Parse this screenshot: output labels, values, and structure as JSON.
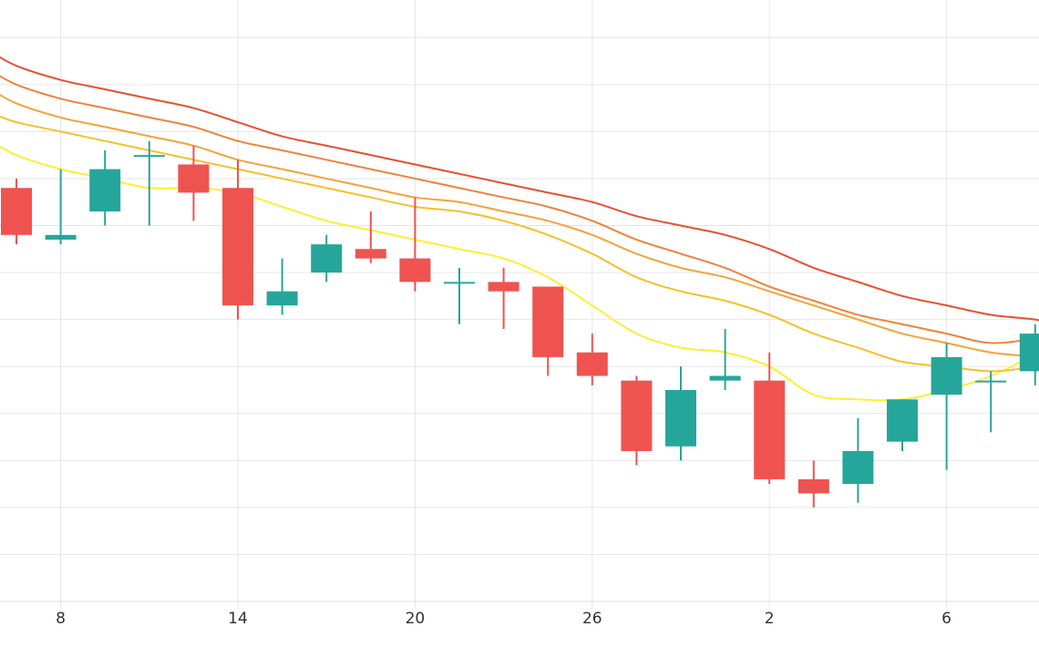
{
  "chart_data": {
    "type": "candlestick",
    "title": "",
    "xlabel": "",
    "ylabel": "",
    "x_tick_labels": [
      {
        "label": "8",
        "index": 1
      },
      {
        "label": "14",
        "index": 5
      },
      {
        "label": "20",
        "index": 9
      },
      {
        "label": "26",
        "index": 13
      },
      {
        "label": "2",
        "index": 17
      },
      {
        "label": "6",
        "index": 21
      }
    ],
    "candles": [
      {
        "index": 0,
        "open": 8.8,
        "high": 9.0,
        "low": 7.6,
        "close": 7.8
      },
      {
        "index": 1,
        "open": 7.7,
        "high": 9.2,
        "low": 7.6,
        "close": 7.8
      },
      {
        "index": 2,
        "open": 8.3,
        "high": 9.6,
        "low": 8.0,
        "close": 9.2
      },
      {
        "index": 3,
        "open": 9.5,
        "high": 9.8,
        "low": 8.0,
        "close": 9.5
      },
      {
        "index": 4,
        "open": 9.3,
        "high": 9.7,
        "low": 8.1,
        "close": 8.7
      },
      {
        "index": 5,
        "open": 8.8,
        "high": 9.4,
        "low": 6.0,
        "close": 6.3
      },
      {
        "index": 6,
        "open": 6.3,
        "high": 7.3,
        "low": 6.1,
        "close": 6.6
      },
      {
        "index": 7,
        "open": 7.0,
        "high": 7.8,
        "low": 6.8,
        "close": 7.6
      },
      {
        "index": 8,
        "open": 7.5,
        "high": 8.3,
        "low": 7.2,
        "close": 7.3
      },
      {
        "index": 9,
        "open": 7.3,
        "high": 8.6,
        "low": 6.6,
        "close": 6.8
      },
      {
        "index": 10,
        "open": 6.8,
        "high": 7.1,
        "low": 5.9,
        "close": 6.8
      },
      {
        "index": 11,
        "open": 6.8,
        "high": 7.1,
        "low": 5.8,
        "close": 6.6
      },
      {
        "index": 12,
        "open": 6.7,
        "high": 6.7,
        "low": 4.8,
        "close": 5.2
      },
      {
        "index": 13,
        "open": 5.3,
        "high": 5.7,
        "low": 4.6,
        "close": 4.8
      },
      {
        "index": 14,
        "open": 4.7,
        "high": 4.8,
        "low": 2.9,
        "close": 3.2
      },
      {
        "index": 15,
        "open": 3.3,
        "high": 5.0,
        "low": 3.0,
        "close": 4.5
      },
      {
        "index": 16,
        "open": 4.7,
        "high": 5.8,
        "low": 4.5,
        "close": 4.8
      },
      {
        "index": 17,
        "open": 4.7,
        "high": 5.3,
        "low": 2.5,
        "close": 2.6
      },
      {
        "index": 18,
        "open": 2.6,
        "high": 3.0,
        "low": 2.0,
        "close": 2.3
      },
      {
        "index": 19,
        "open": 2.5,
        "high": 3.9,
        "low": 2.1,
        "close": 3.2
      },
      {
        "index": 20,
        "open": 3.4,
        "high": 4.3,
        "low": 3.2,
        "close": 4.3
      },
      {
        "index": 21,
        "open": 4.4,
        "high": 5.5,
        "low": 2.8,
        "close": 5.2
      },
      {
        "index": 22,
        "open": 4.7,
        "high": 4.9,
        "low": 3.6,
        "close": 4.7
      },
      {
        "index": 23,
        "open": 4.9,
        "high": 5.9,
        "low": 4.6,
        "close": 5.7
      }
    ],
    "moving_averages": [
      {
        "color": "#ffee33",
        "values": [
          9.5,
          9.2,
          9.0,
          8.8,
          8.8,
          8.7,
          8.4,
          8.1,
          7.9,
          7.7,
          7.5,
          7.3,
          6.9,
          6.3,
          5.7,
          5.4,
          5.3,
          5.0,
          4.4,
          4.3,
          4.3,
          4.5,
          4.8,
          5.3
        ]
      },
      {
        "color": "#f6c02c",
        "values": [
          10.2,
          10.0,
          9.8,
          9.6,
          9.4,
          9.2,
          9.0,
          8.8,
          8.6,
          8.4,
          8.3,
          8.1,
          7.8,
          7.4,
          6.9,
          6.6,
          6.4,
          6.1,
          5.7,
          5.4,
          5.1,
          5.0,
          4.9,
          5.0
        ]
      },
      {
        "color": "#f5a23a",
        "values": [
          10.6,
          10.3,
          10.1,
          9.9,
          9.7,
          9.4,
          9.2,
          9.0,
          8.8,
          8.6,
          8.5,
          8.3,
          8.1,
          7.8,
          7.4,
          7.1,
          6.9,
          6.6,
          6.3,
          6.0,
          5.7,
          5.5,
          5.3,
          5.2
        ]
      },
      {
        "color": "#f0823a",
        "values": [
          11.0,
          10.7,
          10.5,
          10.3,
          10.1,
          9.8,
          9.6,
          9.4,
          9.2,
          9.0,
          8.8,
          8.6,
          8.4,
          8.1,
          7.7,
          7.4,
          7.1,
          6.7,
          6.4,
          6.1,
          5.9,
          5.7,
          5.5,
          5.6
        ]
      },
      {
        "color": "#e8502f",
        "values": [
          11.4,
          11.1,
          10.9,
          10.7,
          10.5,
          10.2,
          9.9,
          9.7,
          9.5,
          9.3,
          9.1,
          8.9,
          8.7,
          8.5,
          8.2,
          8.0,
          7.8,
          7.5,
          7.1,
          6.8,
          6.5,
          6.3,
          6.1,
          6.0
        ]
      }
    ],
    "colors": {
      "up": "#26a69a",
      "down": "#ef5350",
      "grid": "#e6e6e6"
    },
    "y_grid_values": [
      1,
      2,
      3,
      4,
      5,
      6,
      7,
      8,
      9,
      10,
      11,
      12
    ],
    "ylim": [
      0,
      12.8
    ],
    "grid": true,
    "legend": "none"
  }
}
